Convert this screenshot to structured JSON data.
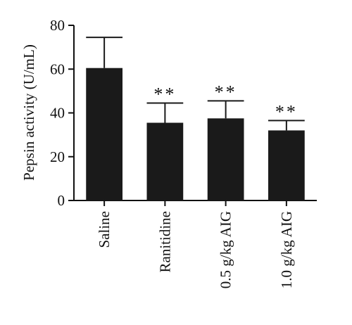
{
  "chart_data": {
    "type": "bar",
    "title": "",
    "xlabel": "",
    "ylabel": "Pepsin activity (U/mL)",
    "ylim": [
      0,
      80
    ],
    "yticks": [
      0,
      20,
      40,
      60,
      80
    ],
    "categories": [
      "Saline",
      "Ranitidine",
      "0.5 g/kg AIG",
      "1.0 g/kg AIG"
    ],
    "values": [
      60.5,
      35.5,
      37.5,
      32
    ],
    "error_upper": [
      14,
      9,
      8,
      4.5
    ],
    "significance": [
      "",
      "**",
      "**",
      "**"
    ],
    "grid": false,
    "legend": "none",
    "colors": {
      "bar": "#1a1a1a",
      "axis": "#111111"
    }
  }
}
